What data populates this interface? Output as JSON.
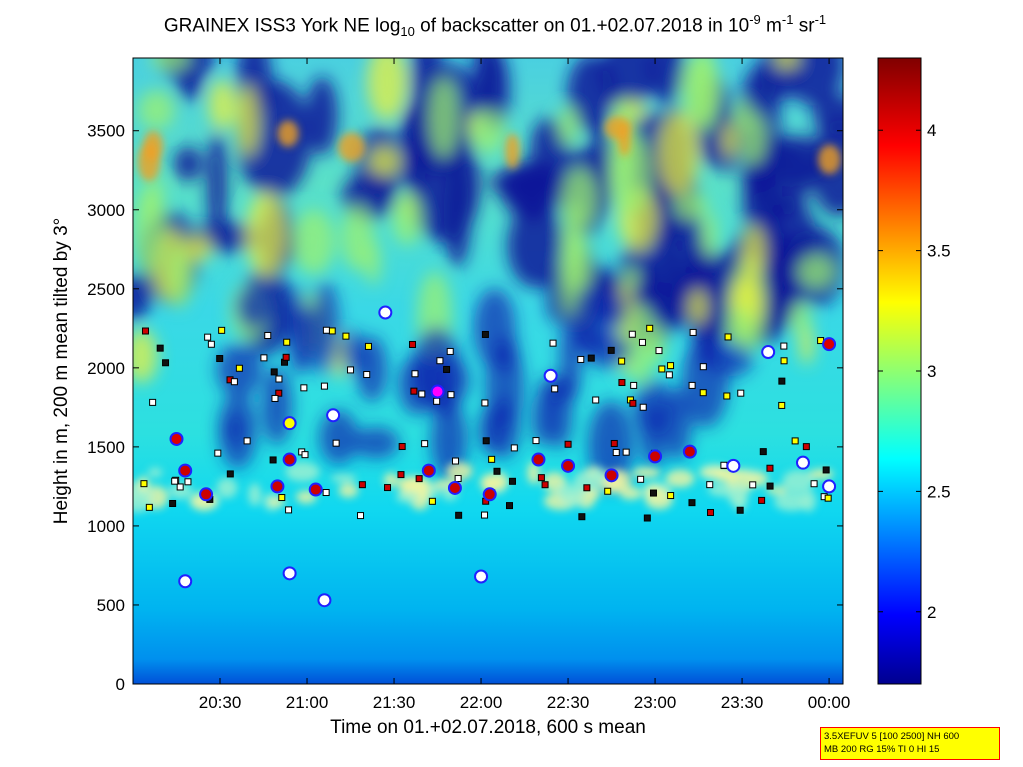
{
  "chart_data": {
    "type": "heatmap",
    "title": {
      "prefix": "GRAINEX ISS3 York NE log",
      "log_base": "10",
      "middle": " of backscatter on 01.+02.07.2018 in 10",
      "exp1": "-9",
      "unit_m": " m",
      "exp2": "-1",
      "unit_sr": " sr",
      "exp3": "-1"
    },
    "xlabel": "Time on 01.+02.07.2018, 600 s mean",
    "ylabel": "Height in m, 200 m mean tilted by 3°",
    "x_ticks": [
      "20:30",
      "21:00",
      "21:30",
      "22:00",
      "22:30",
      "23:00",
      "23:30",
      "00:00"
    ],
    "x_tick_hours": [
      20.5,
      21.0,
      21.5,
      22.0,
      22.5,
      23.0,
      23.5,
      24.0
    ],
    "xlim_hours": [
      20.0,
      24.08
    ],
    "y_ticks": [
      "0",
      "500",
      "1000",
      "1500",
      "2000",
      "2500",
      "3000",
      "3500"
    ],
    "y_tick_values": [
      0,
      500,
      1000,
      1500,
      2000,
      2500,
      3000,
      3500
    ],
    "ylim": [
      0,
      3960
    ],
    "colorbar": {
      "ticks": [
        "2",
        "2.5",
        "3",
        "3.5",
        "4"
      ],
      "tick_values": [
        2,
        2.5,
        3,
        3.5,
        4
      ],
      "range": [
        1.7,
        4.3
      ],
      "colormap": "jet"
    },
    "layers": [
      {
        "height": 1300,
        "typical_log_backscatter": 2.7
      },
      {
        "height": 2000,
        "typical_log_backscatter": 2.6
      },
      {
        "height": 3500,
        "typical_log_backscatter": 2.9
      }
    ],
    "markers": [
      {
        "hour": 20.3,
        "height": 1350,
        "color": "#cc0000"
      },
      {
        "hour": 20.42,
        "height": 1200,
        "color": "#cc0000"
      },
      {
        "hour": 20.83,
        "height": 1250,
        "color": "#cc0000"
      },
      {
        "hour": 20.9,
        "height": 1420,
        "color": "#cc0000"
      },
      {
        "hour": 21.05,
        "height": 1230,
        "color": "#cc0000"
      },
      {
        "hour": 21.7,
        "height": 1350,
        "color": "#cc0000"
      },
      {
        "hour": 21.85,
        "height": 1240,
        "color": "#cc0000"
      },
      {
        "hour": 22.05,
        "height": 1200,
        "color": "#cc0000"
      },
      {
        "hour": 22.33,
        "height": 1420,
        "color": "#cc0000"
      },
      {
        "hour": 22.5,
        "height": 1380,
        "color": "#cc0000"
      },
      {
        "hour": 22.75,
        "height": 1320,
        "color": "#cc0000"
      },
      {
        "hour": 23.0,
        "height": 1440,
        "color": "#cc0000"
      },
      {
        "hour": 23.2,
        "height": 1470,
        "color": "#cc0000"
      },
      {
        "hour": 20.25,
        "height": 1550,
        "color": "#dd0000"
      },
      {
        "hour": 20.9,
        "height": 1650,
        "color": "#ffff00"
      },
      {
        "hour": 21.15,
        "height": 1700,
        "color": "#ffffff"
      },
      {
        "hour": 21.75,
        "height": 1850,
        "color": "#ff00ff"
      },
      {
        "hour": 22.4,
        "height": 1950,
        "color": "#ffffff"
      },
      {
        "hour": 23.65,
        "height": 2100,
        "color": "#ffffff"
      },
      {
        "hour": 24.0,
        "height": 2150,
        "color": "#dd0000"
      },
      {
        "hour": 21.45,
        "height": 2350,
        "color": "#ffffff"
      },
      {
        "hour": 20.9,
        "height": 700,
        "color": "#ffffff"
      },
      {
        "hour": 21.1,
        "height": 530,
        "color": "#ffffff"
      },
      {
        "hour": 22.0,
        "height": 680,
        "color": "#ffffff"
      },
      {
        "hour": 20.3,
        "height": 650,
        "color": "#ffffff"
      },
      {
        "hour": 23.45,
        "height": 1380,
        "color": "#ffffff"
      },
      {
        "hour": 23.85,
        "height": 1400,
        "color": "#ffffff"
      },
      {
        "hour": 24.0,
        "height": 1250,
        "color": "#ffffff"
      }
    ]
  },
  "infobox": {
    "line1": "3.5XEFUV 5 [100 2500] NH 600",
    "line2": "MB 200 RG 15% TI 0 HI 15"
  },
  "colors": {
    "frame": "#000000"
  }
}
